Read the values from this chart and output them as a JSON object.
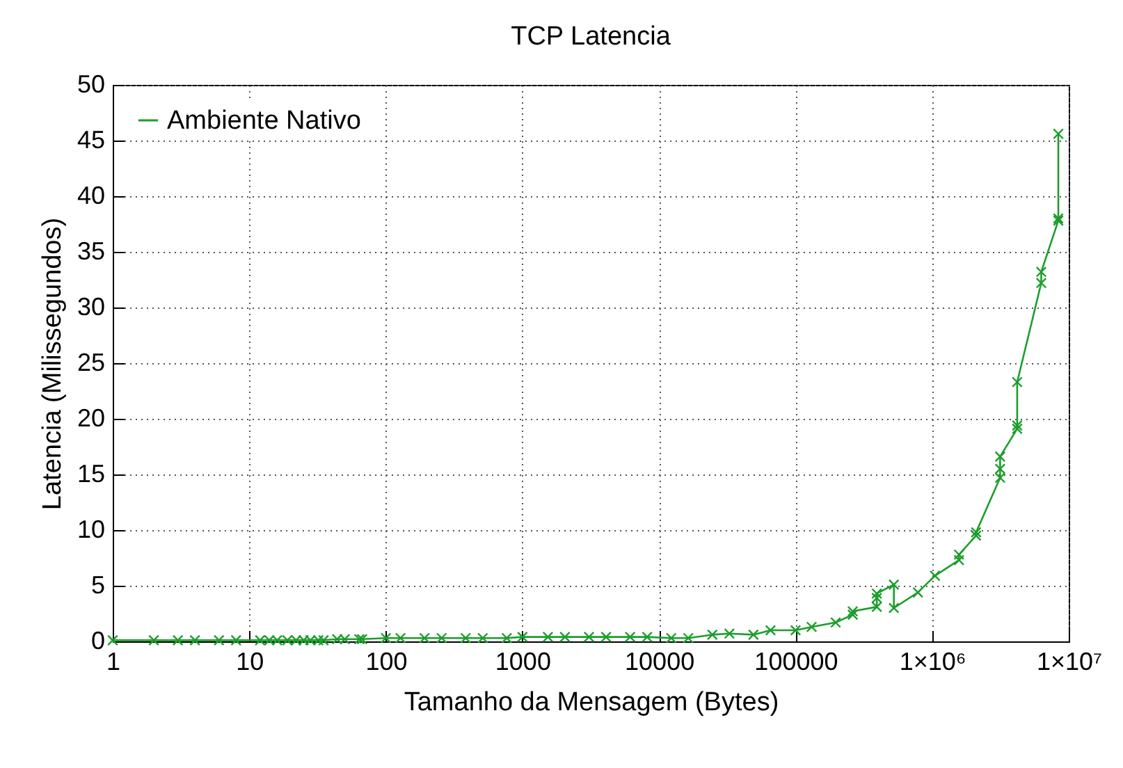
{
  "chart_data": {
    "type": "line",
    "title": "TCP Latencia",
    "xlabel": "Tamanho da Mensagem (Bytes)",
    "ylabel": "Latencia (Milissegundos)",
    "log": "x",
    "grid": true,
    "legend": "top left",
    "marker": "cross",
    "line_style": "solid",
    "xlim": [
      1,
      10000000
    ],
    "ylim": [
      0,
      50
    ],
    "xticks": [
      1,
      10,
      100,
      1000,
      10000,
      100000,
      {
        "value": 1000000,
        "label": "1×10⁶"
      },
      {
        "value": 10000000,
        "label": "1×10⁷"
      }
    ],
    "yticks": [
      0,
      5,
      10,
      15,
      20,
      25,
      30,
      35,
      40,
      45,
      50
    ],
    "x": [
      1,
      2,
      3,
      4,
      6,
      8,
      12,
      14,
      16,
      19,
      22,
      25,
      28,
      32,
      35,
      44,
      50,
      64,
      67,
      100,
      128,
      192,
      256,
      384,
      512,
      768,
      1000,
      1536,
      2048,
      3072,
      4096,
      6144,
      8192,
      12288,
      16384,
      24576,
      32768,
      49152,
      65536,
      100000,
      131072,
      196608,
      262144,
      262144,
      393216,
      393216,
      393216,
      524288,
      524288,
      786432,
      1048576,
      1572864,
      1572864,
      2097152,
      2097152,
      3145728,
      3145728,
      3145728,
      4194304,
      4194304,
      4194304,
      6291456,
      6291456,
      8388608,
      8388608,
      8388608
    ],
    "series": [
      {
        "name": "Ambiente Nativo",
        "color": "#1b9e2b",
        "values": [
          0.1,
          0.1,
          0.1,
          0.1,
          0.1,
          0.1,
          0.1,
          0.1,
          0.1,
          0.1,
          0.1,
          0.1,
          0.1,
          0.1,
          0.1,
          0.2,
          0.2,
          0.2,
          0.2,
          0.3,
          0.3,
          0.3,
          0.3,
          0.3,
          0.3,
          0.3,
          0.4,
          0.4,
          0.4,
          0.4,
          0.4,
          0.4,
          0.4,
          0.3,
          0.3,
          0.6,
          0.7,
          0.6,
          1.0,
          1.0,
          1.3,
          1.7,
          2.4,
          2.7,
          3.1,
          3.9,
          4.3,
          5.1,
          3.0,
          4.4,
          5.9,
          7.3,
          7.8,
          9.5,
          9.8,
          14.7,
          15.5,
          16.6,
          19.1,
          19.4,
          23.3,
          32.2,
          33.2,
          37.8,
          38.0,
          45.6
        ]
      }
    ]
  }
}
